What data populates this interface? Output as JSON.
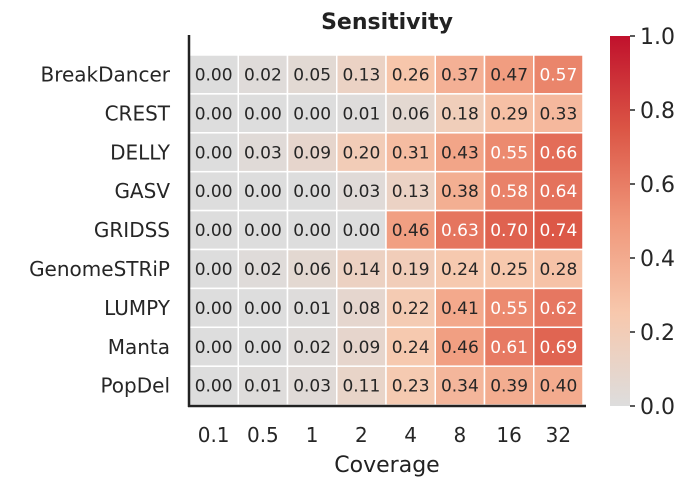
{
  "chart_data": {
    "type": "heatmap",
    "title": "Sensitivity",
    "xlabel": "Coverage",
    "ylabel": "",
    "x_categories": [
      "0.1",
      "0.5",
      "1",
      "2",
      "4",
      "8",
      "16",
      "32"
    ],
    "y_categories": [
      "BreakDancer",
      "CREST",
      "DELLY",
      "GASV",
      "GRIDSS",
      "GenomeSTRiP",
      "LUMPY",
      "Manta",
      "PopDel"
    ],
    "values": [
      [
        0.0,
        0.02,
        0.05,
        0.13,
        0.26,
        0.37,
        0.47,
        0.57
      ],
      [
        0.0,
        0.0,
        0.0,
        0.01,
        0.06,
        0.18,
        0.29,
        0.33
      ],
      [
        0.0,
        0.03,
        0.09,
        0.2,
        0.31,
        0.43,
        0.55,
        0.66
      ],
      [
        0.0,
        0.0,
        0.0,
        0.03,
        0.13,
        0.38,
        0.58,
        0.64
      ],
      [
        0.0,
        0.0,
        0.0,
        0.0,
        0.46,
        0.63,
        0.7,
        0.74
      ],
      [
        0.0,
        0.02,
        0.06,
        0.14,
        0.19,
        0.24,
        0.25,
        0.28
      ],
      [
        0.0,
        0.0,
        0.01,
        0.08,
        0.22,
        0.41,
        0.55,
        0.62
      ],
      [
        0.0,
        0.0,
        0.02,
        0.09,
        0.24,
        0.46,
        0.61,
        0.69
      ],
      [
        0.0,
        0.01,
        0.03,
        0.11,
        0.23,
        0.34,
        0.39,
        0.4
      ]
    ],
    "value_format": "2 decimals",
    "colorbar": {
      "range": [
        0.0,
        1.0
      ],
      "ticks": [
        "0.0",
        "0.2",
        "0.4",
        "0.6",
        "0.8",
        "1.0"
      ],
      "colormap_stops": [
        {
          "v": 0.0,
          "color": "#dddddd"
        },
        {
          "v": 0.25,
          "color": "#f7c8ad"
        },
        {
          "v": 0.5,
          "color": "#f0977a"
        },
        {
          "v": 0.75,
          "color": "#db5545"
        },
        {
          "v": 1.0,
          "color": "#c0112c"
        }
      ]
    },
    "grid": false,
    "legend": "colorbar-right"
  }
}
